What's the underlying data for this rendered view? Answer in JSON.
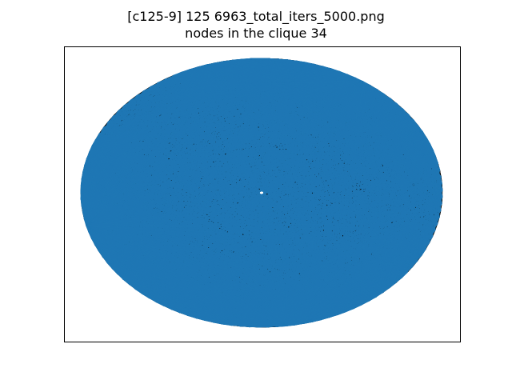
{
  "figure": {
    "title_line1": "[c125-9] 125 6963_total_iters_5000.png",
    "title_line2": "nodes in the clique 34"
  },
  "graph": {
    "node_count": 125,
    "clique_size": 34,
    "colors": {
      "base_edges": "#000000",
      "clique_edges": "#1f77b4",
      "frame": "#000000",
      "background": "#ffffff"
    }
  }
}
